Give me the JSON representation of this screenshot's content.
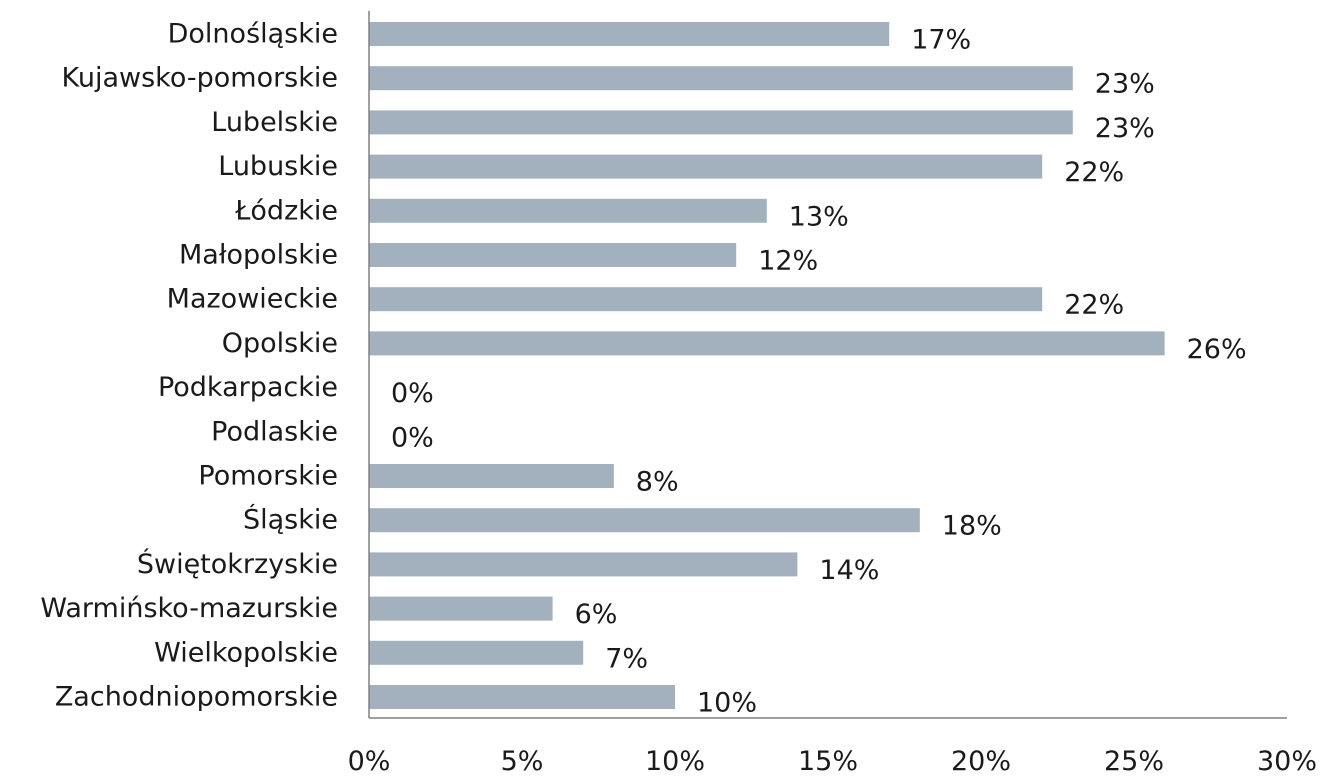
{
  "chart_data": {
    "type": "bar",
    "orientation": "horizontal",
    "categories": [
      "Dolnośląskie",
      "Kujawsko-pomorskie",
      "Lubelskie",
      "Lubuskie",
      "Łódzkie",
      "Małopolskie",
      "Mazowieckie",
      "Opolskie",
      "Podkarpackie",
      "Podlaskie",
      "Pomorskie",
      "Śląskie",
      "Świętokrzyskie",
      "Warmińsko-mazurskie",
      "Wielkopolskie",
      "Zachodniopomorskie"
    ],
    "values": [
      17,
      23,
      23,
      22,
      13,
      12,
      22,
      26,
      0,
      0,
      8,
      18,
      14,
      6,
      7,
      10
    ],
    "data_labels": [
      "17%",
      "23%",
      "23%",
      "22%",
      "13%",
      "12%",
      "22%",
      "26%",
      "0%",
      "0%",
      "8%",
      "18%",
      "14%",
      "6%",
      "7%",
      "10%"
    ],
    "x_ticks": [
      0,
      5,
      10,
      15,
      20,
      25,
      30
    ],
    "x_tick_labels": [
      "0%",
      "5%",
      "10%",
      "15%",
      "20%",
      "25%",
      "30%"
    ],
    "xlim": [
      0,
      30
    ],
    "title": "",
    "xlabel": "",
    "ylabel": "",
    "grid": false,
    "legend": "none",
    "bar_color": "#a3b0be",
    "axis_color": "#808080"
  }
}
